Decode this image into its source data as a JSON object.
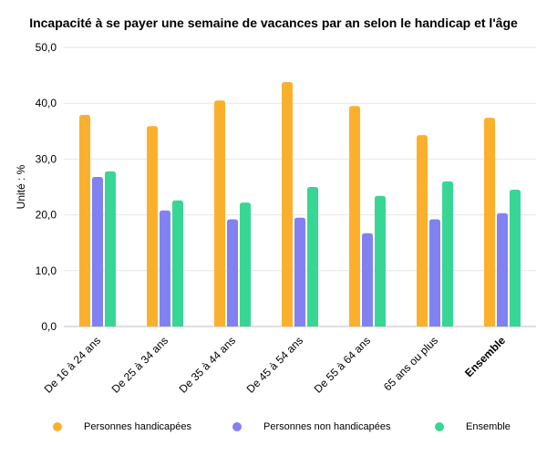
{
  "chart_data": {
    "type": "bar",
    "title": "Incapacité à se payer une semaine de vacances par an selon le handicap et l'âge",
    "ylabel": "Unité : %",
    "xlabel": "",
    "ylim": [
      0,
      50
    ],
    "yticks": [
      "0,0",
      "10,0",
      "20,0",
      "30,0",
      "40,0",
      "50,0"
    ],
    "grid": true,
    "legend_position": "bottom",
    "categories": [
      "De 16 à 24 ans",
      "De 25 à 34 ans",
      "De 35 à 44 ans",
      "De 45 à 54 ans",
      "De 55 à 64 ans",
      "65 ans ou plus",
      "Ensemble"
    ],
    "bold_category": "Ensemble",
    "series": [
      {
        "name": "Personnes handicapées",
        "color": "#FBB02D",
        "values": [
          37.9,
          35.9,
          40.5,
          43.8,
          39.5,
          34.3,
          37.4
        ]
      },
      {
        "name": "Personnes non handicapées",
        "color": "#8281F1",
        "values": [
          26.8,
          20.8,
          19.2,
          19.5,
          16.7,
          19.2,
          20.3
        ]
      },
      {
        "name": "Ensemble",
        "color": "#38D694",
        "values": [
          27.8,
          22.6,
          22.2,
          25.0,
          23.4,
          26.0,
          24.5
        ]
      }
    ]
  }
}
